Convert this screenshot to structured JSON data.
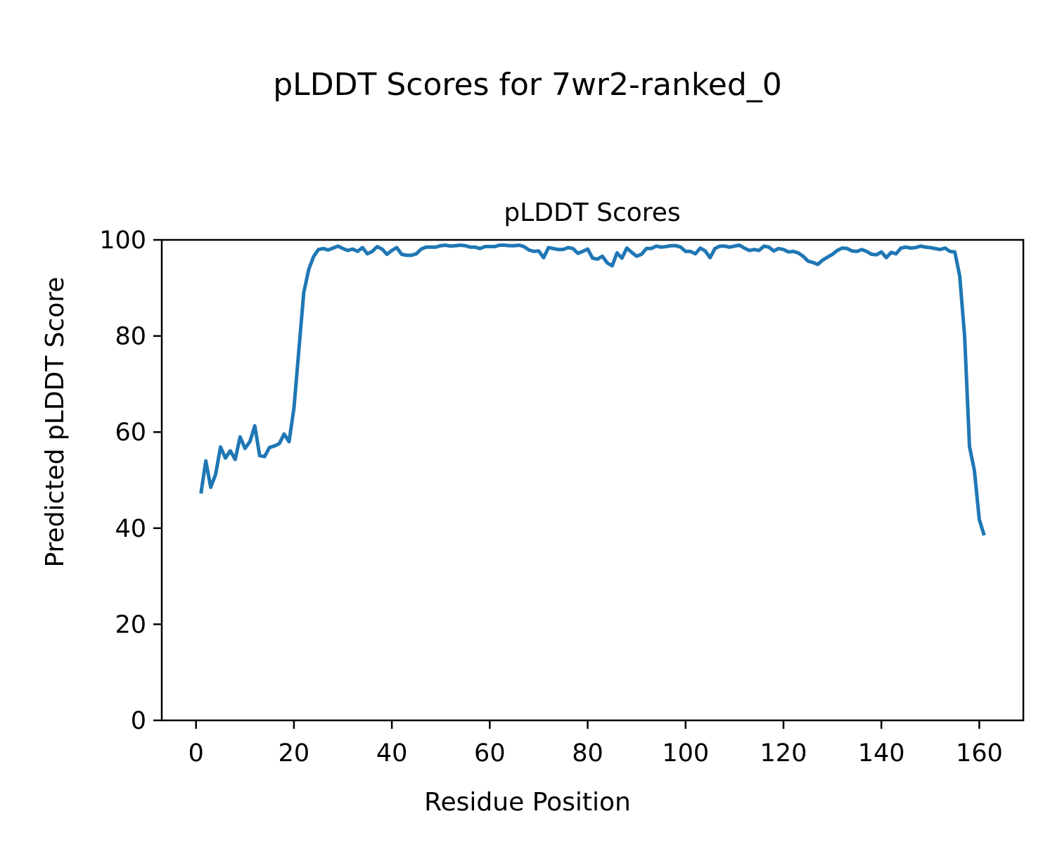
{
  "figure": {
    "suptitle": "pLDDT Scores for 7wr2-ranked_0"
  },
  "chart_data": {
    "type": "line",
    "title": "pLDDT Scores",
    "xlabel": "Residue Position",
    "ylabel": "Predicted pLDDT Score",
    "xlim": [
      -7,
      169
    ],
    "ylim": [
      0,
      100
    ],
    "x_ticks": [
      "0",
      "20",
      "40",
      "60",
      "80",
      "100",
      "120",
      "140",
      "160"
    ],
    "y_ticks": [
      "0",
      "20",
      "40",
      "60",
      "80",
      "100"
    ],
    "grid": false,
    "line_color": "#1f77b4",
    "series": [
      {
        "x_start": 1,
        "x_step": 1,
        "values": [
          47.2,
          54.0,
          48.5,
          51.2,
          56.9,
          54.6,
          56.1,
          54.3,
          59.0,
          56.6,
          58.0,
          61.3,
          55.1,
          54.9,
          56.8,
          57.1,
          57.6,
          59.6,
          58.0,
          65.0,
          77.0,
          89.0,
          93.8,
          96.5,
          98.0,
          98.2,
          97.9,
          98.3,
          98.7,
          98.2,
          97.8,
          98.1,
          97.6,
          98.4,
          97.1,
          97.6,
          98.6,
          98.1,
          97.0,
          97.8,
          98.4,
          97.0,
          96.8,
          96.8,
          97.1,
          98.1,
          98.5,
          98.5,
          98.5,
          98.8,
          98.9,
          98.7,
          98.8,
          98.9,
          98.8,
          98.5,
          98.5,
          98.2,
          98.6,
          98.6,
          98.6,
          98.9,
          98.9,
          98.8,
          98.8,
          98.9,
          98.6,
          97.9,
          97.6,
          97.7,
          96.3,
          98.4,
          98.2,
          98.0,
          98.0,
          98.4,
          98.2,
          97.2,
          97.6,
          98.1,
          96.2,
          96.0,
          96.6,
          95.2,
          94.6,
          97.3,
          96.2,
          98.3,
          97.4,
          96.6,
          97.0,
          98.2,
          98.2,
          98.7,
          98.5,
          98.6,
          98.8,
          98.8,
          98.5,
          97.6,
          97.6,
          97.1,
          98.3,
          97.7,
          96.3,
          98.2,
          98.7,
          98.7,
          98.5,
          98.7,
          98.9,
          98.3,
          97.8,
          98.0,
          97.8,
          98.7,
          98.5,
          97.7,
          98.2,
          98.0,
          97.5,
          97.6,
          97.3,
          96.6,
          95.6,
          95.3,
          94.9,
          95.8,
          96.4,
          97.0,
          97.8,
          98.3,
          98.2,
          97.7,
          97.6,
          98.0,
          97.6,
          97.0,
          96.9,
          97.5,
          96.3,
          97.4,
          97.1,
          98.3,
          98.5,
          98.3,
          98.4,
          98.7,
          98.5,
          98.4,
          98.2,
          98.0,
          98.3,
          97.6,
          97.5,
          92.5,
          80.0,
          57.0,
          52.0,
          41.8,
          38.5
        ]
      }
    ]
  }
}
